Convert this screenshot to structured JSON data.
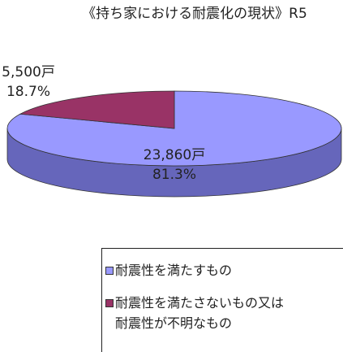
{
  "chart_data": {
    "type": "pie",
    "title": "《持ち家における耐震化の現状》R5",
    "categories": [
      "耐震性を満たすもの",
      "耐震性を満たさないもの又は耐震性が不明なもの"
    ],
    "values": [
      81.3,
      18.7
    ],
    "value_labels": [
      "81.3%",
      "18.7%"
    ],
    "count_labels": [
      "23,860戸",
      "5,500戸"
    ],
    "colors": [
      "#9999ff",
      "#993366"
    ],
    "side_color": "#6666bb"
  }
}
